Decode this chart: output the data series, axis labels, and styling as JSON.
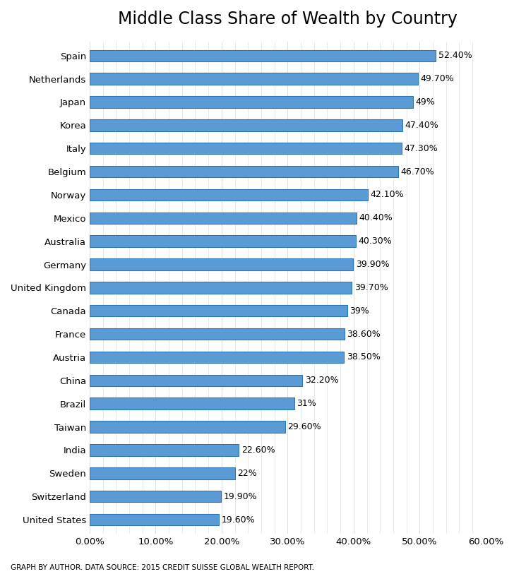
{
  "title": "Middle Class Share of Wealth by Country",
  "countries": [
    "Spain",
    "Netherlands",
    "Japan",
    "Korea",
    "Italy",
    "Belgium",
    "Norway",
    "Mexico",
    "Australia",
    "Germany",
    "United Kingdom",
    "Canada",
    "France",
    "Austria",
    "China",
    "Brazil",
    "Taiwan",
    "India",
    "Sweden",
    "Switzerland",
    "United States"
  ],
  "values": [
    52.4,
    49.7,
    49.0,
    47.4,
    47.3,
    46.7,
    42.1,
    40.4,
    40.3,
    39.9,
    39.7,
    39.0,
    38.6,
    38.5,
    32.2,
    31.0,
    29.6,
    22.6,
    22.0,
    19.9,
    19.6
  ],
  "labels": [
    "52.40%",
    "49.70%",
    "49%",
    "47.40%",
    "47.30%",
    "46.70%",
    "42.10%",
    "40.40%",
    "40.30%",
    "39.90%",
    "39.70%",
    "39%",
    "38.60%",
    "38.50%",
    "32.20%",
    "31%",
    "29.60%",
    "22.60%",
    "22%",
    "19.90%",
    "19.60%"
  ],
  "bar_color": "#5b9bd5",
  "bar_edge_color": "#2e75b6",
  "background_color": "#ffffff",
  "grid_color": "#d9d9d9",
  "title_fontsize": 17,
  "label_fontsize": 9,
  "tick_fontsize": 9.5,
  "footnote": "GRAPH BY AUTHOR. DATA SOURCE: 2015 CREDIT SUISSE GLOBAL WEALTH REPORT.",
  "xlim": [
    0,
    60
  ],
  "xticks": [
    0,
    10,
    20,
    30,
    40,
    50,
    60
  ]
}
